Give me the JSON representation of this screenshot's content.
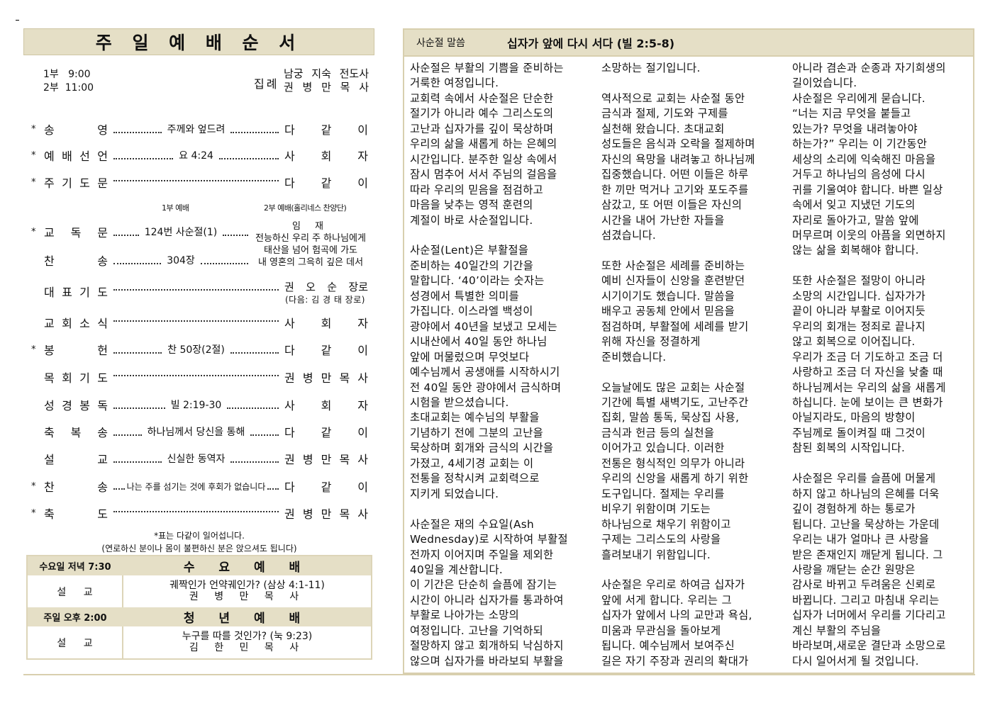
{
  "left": {
    "title": "주 일 예 배 순 서",
    "times": [
      "1부   9:00",
      "2부  11:00"
    ],
    "presider_label": "집례",
    "presiders": [
      "남궁 지숙 전도사",
      "권 병 만 목 사"
    ],
    "program": [
      {
        "star": "*",
        "label": "송 영",
        "middle": "주께와 엎드려",
        "right": "다 같 이"
      },
      {
        "star": "*",
        "label": "예 배 선 언",
        "middle": "요 4:24",
        "right": "사 회 자"
      },
      {
        "star": "*",
        "label": "주 기 도 문",
        "middle": "",
        "right": "다 같 이"
      },
      {
        "star": "*",
        "label": "교 독 문",
        "middle": "124번 사순절(1)",
        "right": ""
      },
      {
        "star": "",
        "label": "찬 송",
        "middle": "304장",
        "right": ""
      },
      {
        "star": "",
        "label": "대 표 기 도",
        "middle": "",
        "right": "권 오 순 장로"
      },
      {
        "star": "",
        "label": "교 회 소 식",
        "middle": "",
        "right": "사 회 자"
      },
      {
        "star": "*",
        "label": "봉 헌",
        "middle": "찬 50장(2절)",
        "right": "다 같 이"
      },
      {
        "star": "",
        "label": "목 회 기 도",
        "middle": "",
        "right": "권 병 만 목 사"
      },
      {
        "star": "",
        "label": "성 경 봉 독",
        "middle": "빌 2:19-30",
        "right": "사 회 자"
      },
      {
        "star": "",
        "label": "축 복 송",
        "middle": "하나님께서 당신을 통해",
        "right": "다 같 이"
      },
      {
        "star": "",
        "label": "설 교",
        "middle": "신실한 동역자",
        "right": "권 병 만 목 사"
      },
      {
        "star": "*",
        "label": "찬 송",
        "middle": "나는 주를 섬기는 것에 후회가 없습니다",
        "right": "다 같 이"
      },
      {
        "star": "*",
        "label": "축 도",
        "middle": "",
        "right": "권 병 만 목 사"
      }
    ],
    "service1_label": "1부 예배",
    "service2_label": "2부 예배(홀리네스 찬양단)",
    "choir_lines": [
      "임 재",
      "전능하신 우리 주 하나님에게",
      "태산을 넘어 험곡에 가도",
      "내 영혼의 그윽히 깊은 데서"
    ],
    "next_prayer": "(다음: 김 경 태 장로)",
    "note1": "*표는 다같이 일어섭니다.",
    "note2": "(연로하신 분이나 몸이 불편하신 분은 앉으셔도 됩니다)",
    "services": [
      {
        "time": "수요일 저녁 7:30",
        "name": "수 요 예 배",
        "role": "설 교",
        "sermon": "궤짝인가 언약궤인가? (삼상 4:1-11)",
        "preacher": "권 병 만 목 사"
      },
      {
        "time": "주일 오후 2:00",
        "name": "청 년 예 배",
        "role": "설 교",
        "sermon": "누구를 따를 것인가? (눅 9:23)",
        "preacher": "김 한 민 목 사"
      }
    ]
  },
  "right": {
    "section_label": "사순절 말씀",
    "title": "십자가 앞에 다시 서다 (빌 2:5-8)",
    "columns": [
      [
        "사순절은 부활의 기쁨을 준비하는",
        "거룩한 여정입니다.",
        "교회력 속에서 사순절은 단순한",
        "절기가 아니라 예수 그리스도의",
        "고난과 십자가를 깊이 묵상하며",
        "우리의 삶을 새롭게 하는 은혜의",
        "시간입니다. 분주한 일상 속에서",
        "잠시 멈추어 서서 주님의 걸음을",
        "따라 우리의 믿음을 점검하고",
        "마음을 낮추는 영적 훈련의",
        "계절이 바로 사순절입니다.",
        "",
        "사순절(Lent)은 부활절을",
        "준비하는 40일간의 기간을",
        "말합니다. ‘40’이라는 숫자는",
        "성경에서 특별한 의미를",
        "가집니다. 이스라엘 백성이",
        "광야에서 40년을 보냈고 모세는",
        "시내산에서 40일 동안 하나님",
        "앞에 머물렀으며 무엇보다",
        "예수님께서 공생애를 시작하시기",
        "전 40일 동안 광야에서 금식하며",
        "시험을 받으셨습니다.",
        "초대교회는 예수님의 부활을",
        "기념하기 전에 그분의 고난을",
        "묵상하며 회개와 금식의 시간을",
        "가졌고, 4세기경 교회는 이",
        "전통을 정착시켜 교회력으로",
        "지키게 되었습니다.",
        "",
        "사순절은 재의 수요일(Ash",
        "Wednesday)로 시작하여 부활절",
        "전까지 이어지며 주일을 제외한",
        "40일을 계산합니다.",
        "이 기간은 단순히 슬픔에 잠기는",
        "시간이 아니라 십자가를 통과하여",
        "부활로 나아가는 소망의",
        "여정입니다. 고난을 기억하되",
        "절망하지 않고 회개하되 낙심하지",
        "않으며 십자가를 바라보되 부활을"
      ],
      [
        "소망하는 절기입니다.",
        "",
        "역사적으로 교회는 사순절 동안",
        "금식과 절제, 기도와 구제를",
        "실천해 왔습니다. 초대교회",
        "성도들은 음식과 오락을 절제하며",
        "자신의 욕망을 내려놓고 하나님께",
        "집중했습니다. 어떤 이들은 하루",
        "한 끼만 먹거나 고기와 포도주를",
        "삼갔고, 또 어떤 이들은 자신의",
        "시간을 내어 가난한 자들을",
        "섬겼습니다.",
        "",
        "또한 사순절은 세례를 준비하는",
        "예비 신자들이 신앙을 훈련받던",
        "시기이기도 했습니다. 말씀을",
        "배우고 공동체 안에서 믿음을",
        "점검하며, 부활절에 세례를 받기",
        "위해 자신을 정결하게",
        "준비했습니다.",
        "",
        "오늘날에도 많은 교회는 사순절",
        "기간에 특별 새벽기도, 고난주간",
        "집회, 말씀 통독, 묵상집 사용,",
        "금식과 헌금 등의 실천을",
        "이어가고 있습니다. 이러한",
        "전통은 형식적인 의무가 아니라",
        "우리의 신앙을 새롭게 하기 위한",
        "도구입니다. 절제는 우리를",
        "비우기 위함이며 기도는",
        "하나님으로 채우기 위함이고",
        "구제는 그리스도의 사랑을",
        "흘려보내기 위함입니다.",
        "",
        "사순절은 우리로 하여금 십자가",
        "앞에 서게 합니다. 우리는 그",
        "십자가 앞에서 나의 교만과 욕심,",
        "미움과 무관심을 돌아보게",
        "됩니다. 예수님께서 보여주신",
        "길은 자기 주장과 권리의 확대가"
      ],
      [
        "아니라 겸손과 순종과 자기희생의",
        "길이었습니다.",
        "사순절은 우리에게 묻습니다.",
        "“너는 지금 무엇을 붙들고",
        "있는가? 무엇을 내려놓아야",
        "하는가?” 우리는 이 기간동안",
        "세상의 소리에 익숙해진 마음을",
        "거두고 하나님의 음성에 다시",
        "귀를 기울여야 합니다. 바쁜 일상",
        "속에서 잊고 지냈던 기도의",
        "자리로 돌아가고, 말씀 앞에",
        "머무르며 이웃의 아픔을 외면하지",
        "않는 삶을 회복해야 합니다.",
        "",
        "또한 사순절은 절망이 아니라",
        "소망의 시간입니다. 십자가가",
        "끝이 아니라 부활로 이어지듯",
        "우리의 회개는 정죄로 끝나지",
        "않고 회복으로 이어집니다.",
        "우리가 조금 더 기도하고 조금 더",
        "사랑하고 조금 더 자신을 낮출 때",
        "하나님께서는 우리의 삶을 새롭게",
        "하십니다. 눈에 보이는 큰 변화가",
        "아닐지라도, 마음의 방향이",
        "주님께로 돌이켜질 때 그것이",
        "참된 회복의 시작입니다.",
        "",
        "사순절은 우리를 슬픔에 머물게",
        "하지 않고 하나님의 은혜를 더욱",
        "깊이 경험하게 하는 통로가",
        "됩니다. 고난을 묵상하는 가운데",
        "우리는 내가 얼마나 큰 사랑을",
        "받은 존재인지 깨닫게 됩니다. 그",
        "사랑을 깨닫는 순간 원망은",
        "감사로 바뀌고 두려움은 신뢰로",
        "바뀝니다. 그리고 마침내 우리는",
        "십자가 너머에서 우리를 기다리고",
        "계신 부활의 주님을",
        "바라보며,새로운 결단과 소망으로",
        "다시 일어서게 될 것입니다."
      ]
    ]
  },
  "colors": {
    "header_bg": "#e5dfc6",
    "border": "#d8cfae"
  }
}
